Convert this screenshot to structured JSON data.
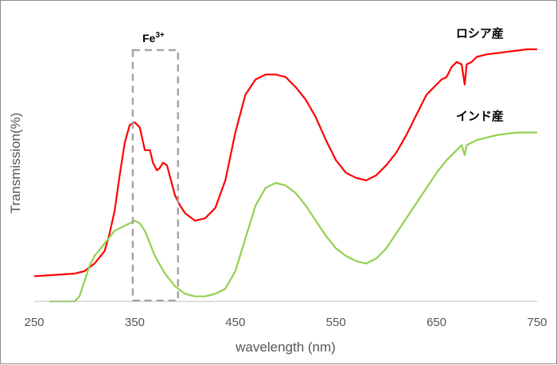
{
  "chart_data": {
    "type": "line",
    "title": "",
    "xlabel": "wavelength (nm)",
    "ylabel": "Transmission(%)",
    "xlim": [
      250,
      750
    ],
    "ylim": [
      0,
      100
    ],
    "xticks": [
      "250",
      "350",
      "450",
      "550",
      "650",
      "750"
    ],
    "grid": false,
    "annotation": {
      "text": "Fe",
      "superscript": "3+",
      "x_range": [
        348,
        393
      ]
    },
    "series": [
      {
        "name": "ロシア産",
        "color": "#ff0000",
        "x": [
          250,
          290,
          300,
          310,
          320,
          325,
          330,
          335,
          340,
          345,
          350,
          355,
          360,
          365,
          368,
          372,
          375,
          378,
          382,
          386,
          390,
          395,
          400,
          410,
          420,
          430,
          440,
          450,
          460,
          470,
          480,
          490,
          500,
          510,
          520,
          530,
          540,
          550,
          560,
          570,
          580,
          590,
          600,
          610,
          620,
          630,
          640,
          645,
          650,
          655,
          660,
          665,
          670,
          675,
          678,
          680,
          685,
          690,
          700,
          710,
          720,
          730,
          740,
          750
        ],
        "y": [
          10,
          11,
          12,
          15,
          20,
          27,
          36,
          50,
          63,
          70,
          71,
          69,
          60,
          60,
          55,
          52,
          53,
          55,
          54,
          48,
          42,
          38,
          35,
          32,
          33,
          37,
          48,
          67,
          82,
          88,
          90,
          90,
          89,
          85,
          80,
          73,
          64,
          56,
          51,
          49,
          48,
          50,
          54,
          59,
          66,
          74,
          82,
          84,
          86,
          88,
          89,
          93,
          95,
          94,
          86,
          94,
          95,
          97,
          98,
          98.5,
          99,
          99.5,
          100,
          100
        ]
      },
      {
        "name": "インド産",
        "color": "#92d050",
        "x": [
          265,
          290,
          295,
          300,
          305,
          310,
          320,
          330,
          340,
          350,
          355,
          360,
          365,
          370,
          380,
          390,
          400,
          410,
          420,
          430,
          440,
          450,
          460,
          470,
          480,
          490,
          500,
          510,
          520,
          530,
          540,
          550,
          560,
          570,
          580,
          590,
          600,
          610,
          620,
          630,
          640,
          650,
          660,
          670,
          675,
          678,
          680,
          690,
          700,
          710,
          720,
          730,
          740,
          750
        ],
        "y": [
          0,
          0,
          2,
          8,
          14,
          18,
          23,
          28,
          30,
          32,
          31,
          28,
          23,
          18,
          11,
          6,
          3,
          2,
          2,
          3,
          5,
          12,
          25,
          38,
          45,
          47,
          46,
          43,
          38,
          32,
          26,
          21,
          18,
          16,
          15,
          17,
          21,
          27,
          33,
          39,
          45,
          51,
          56,
          60,
          62,
          58,
          62,
          64,
          65,
          66,
          66.5,
          67,
          67,
          67
        ]
      }
    ]
  }
}
